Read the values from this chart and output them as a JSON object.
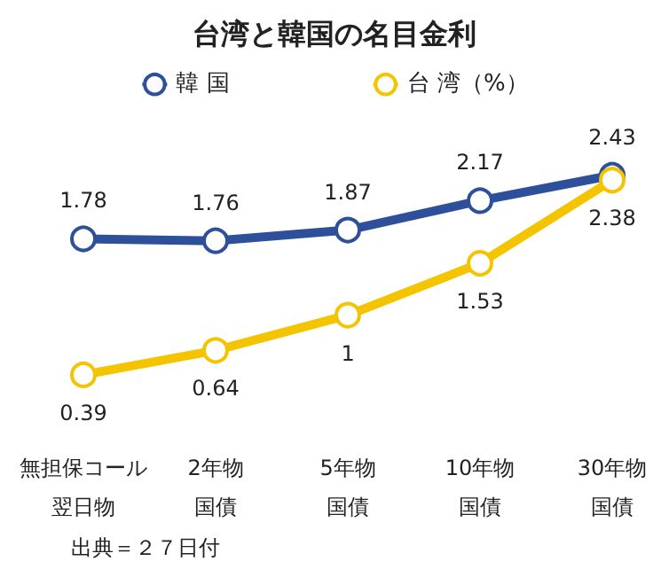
{
  "chart_data": {
    "type": "line",
    "title": "台湾と韓国の名目金利",
    "categories": [
      "無担保コール翌日物",
      "2年物国債",
      "5年物国債",
      "10年物国債",
      "30年物国債"
    ],
    "series": [
      {
        "name": "韓 国",
        "color": "#2e4f9a",
        "values": [
          1.78,
          1.76,
          1.87,
          2.17,
          2.43
        ]
      },
      {
        "name": "台 湾（%）",
        "color": "#f5c400",
        "values": [
          0.39,
          0.64,
          1,
          1.53,
          2.38
        ]
      }
    ],
    "data_labels": true,
    "legend": "top",
    "grid": false,
    "marker": "circle",
    "line_style": "solid",
    "annotations": [
      "出典＝２７日付"
    ]
  }
}
